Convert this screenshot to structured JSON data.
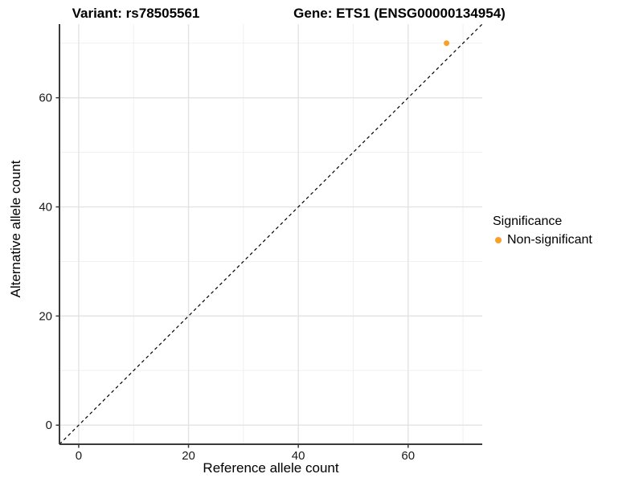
{
  "figure": {
    "background": "#ffffff"
  },
  "colors": {
    "point": "#F8A029",
    "grid_major": "#E3E3E3",
    "grid_minor": "#F0F0F0",
    "axis_line": "#3A3A3A",
    "tick_label": "#1A1A1A",
    "reference_line": "#000000"
  },
  "chart_data": {
    "type": "scatter",
    "titles": [
      "Variant: rs78505561",
      "Gene: ETS1 (ENSG00000134954)"
    ],
    "xlabel": "Reference allele count",
    "ylabel": "Alternative allele count",
    "xlim": [
      -3.5,
      73.5
    ],
    "ylim": [
      -3.5,
      73.5
    ],
    "x_ticks": [
      0,
      20,
      40,
      60
    ],
    "y_ticks": [
      0,
      20,
      40,
      60
    ],
    "x_minor_ticks": [
      10,
      30,
      50,
      70
    ],
    "y_minor_ticks": [
      10,
      30,
      50,
      70
    ],
    "grid": true,
    "reference_line": {
      "type": "identity",
      "style": "dashed",
      "slope": 1,
      "intercept": 0
    },
    "series": [
      {
        "name": "Non-significant",
        "color": "#F8A029",
        "points": [
          {
            "x": 67,
            "y": 70
          }
        ]
      }
    ],
    "legend": {
      "title": "Significance",
      "position": "right",
      "items": [
        {
          "label": "Non-significant",
          "color": "#F8A029"
        }
      ]
    }
  }
}
